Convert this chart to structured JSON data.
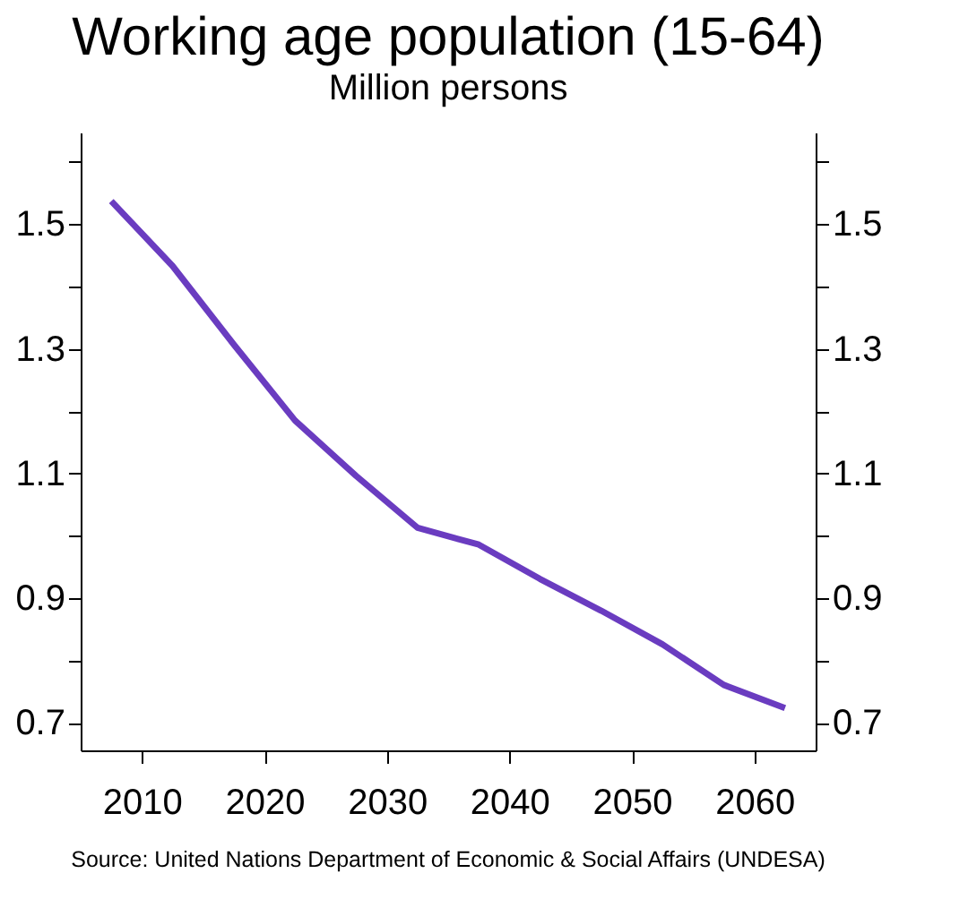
{
  "chart_data": {
    "type": "line",
    "title": "Working age population (15-64)",
    "subtitle": "Million persons",
    "annotations": [
      "Source: United Nations Department of Economic & Social Affairs (UNDESA)"
    ],
    "x": [
      2007.5,
      2012.5,
      2017.5,
      2022.5,
      2027.5,
      2032.5,
      2037.5,
      2042.5,
      2047.5,
      2052.5,
      2057.5,
      2062.5
    ],
    "series": [
      {
        "color": "#6a3cc0",
        "values": [
          1.537,
          1.433,
          1.307,
          1.185,
          1.096,
          1.013,
          0.986,
          0.931,
          0.88,
          0.826,
          0.761,
          0.724
        ]
      }
    ],
    "xlim": [
      2005,
      2065
    ],
    "xticks": [
      2010,
      2020,
      2030,
      2040,
      2050,
      2060
    ],
    "ylim": [
      0.656,
      1.647
    ],
    "yticks": [
      0.7,
      {
        "value": 0.8,
        "label": null
      },
      0.9,
      {
        "value": 1.0,
        "label": null
      },
      1.1,
      {
        "value": 1.2,
        "label": null
      },
      1.3,
      {
        "value": 1.4,
        "label": null
      },
      1.5,
      {
        "value": 1.6,
        "label": null
      }
    ],
    "y2lim": [
      0.656,
      1.647
    ],
    "y2ticks": [
      0.7,
      {
        "value": 0.8,
        "label": null
      },
      0.9,
      {
        "value": 1.0,
        "label": null
      },
      1.1,
      {
        "value": 1.2,
        "label": null
      },
      1.3,
      {
        "value": 1.4,
        "label": null
      },
      1.5,
      {
        "value": 1.6,
        "label": null
      }
    ],
    "grid": false,
    "marker": "none",
    "line_style": "solid"
  }
}
